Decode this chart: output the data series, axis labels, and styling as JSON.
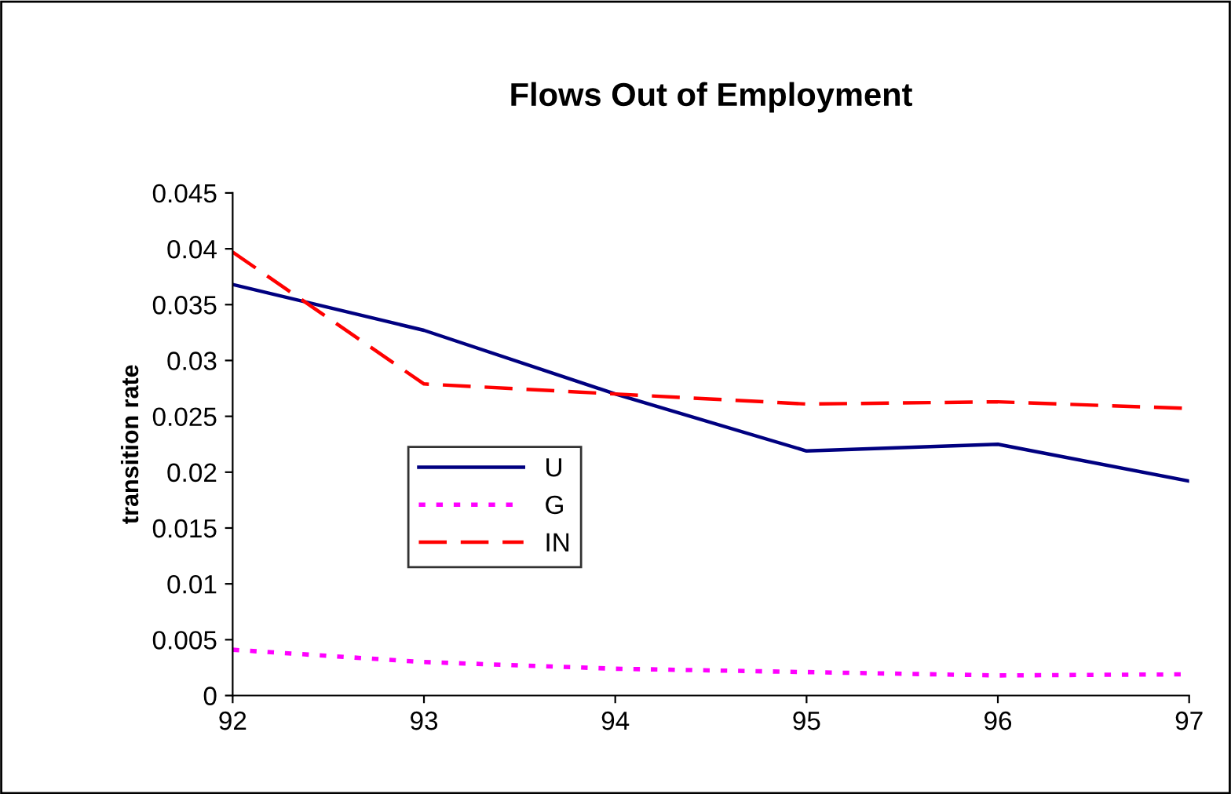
{
  "chart_data": {
    "type": "line",
    "title": "Flows Out of Employment",
    "ylabel": "transition rate",
    "x": [
      92,
      93,
      94,
      95,
      96,
      97
    ],
    "series": [
      {
        "name": "U",
        "color": "#000080",
        "line_style": "solid",
        "values": [
          0.0368,
          0.0327,
          0.027,
          0.0219,
          0.0225,
          0.0192
        ]
      },
      {
        "name": "G",
        "color": "#ff00ff",
        "line_style": "dotted",
        "values": [
          0.0041,
          0.003,
          0.0024,
          0.0021,
          0.0018,
          0.0019
        ]
      },
      {
        "name": "IN",
        "color": "#ff0000",
        "line_style": "dashed",
        "values": [
          0.0397,
          0.0279,
          0.027,
          0.0261,
          0.0263,
          0.0257
        ]
      }
    ],
    "xlim": [
      92,
      97
    ],
    "xticks": [
      92,
      93,
      94,
      95,
      96,
      97
    ],
    "ylim": [
      0,
      0.045
    ],
    "yticks": [
      0,
      0.005,
      0.01,
      0.015,
      0.02,
      0.025,
      0.03,
      0.035,
      0.04,
      0.045
    ],
    "grid": false,
    "legend": "center left",
    "marker": "none"
  }
}
